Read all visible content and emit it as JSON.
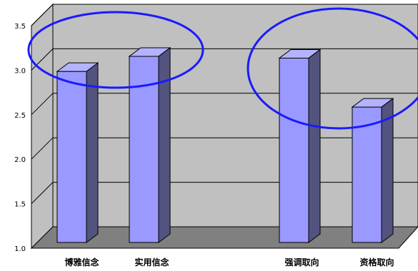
{
  "chart_data": {
    "type": "bar",
    "style": "3d-column",
    "categories": [
      "博雅信念",
      "实用信念",
      "强调取向",
      "资格取向"
    ],
    "series": [
      {
        "values": [
          3.05,
          3.22,
          3.2,
          2.65
        ]
      }
    ],
    "yticks": [
      "1.0",
      "1.5",
      "2.0",
      "2.5",
      "3.0",
      "3.5"
    ],
    "ylim": [
      1.0,
      3.5
    ],
    "grid": true,
    "legend": false,
    "annotations": [
      {
        "type": "ellipse",
        "encloses": [
          "博雅信念",
          "实用信念"
        ]
      },
      {
        "type": "ellipse",
        "encloses": [
          "强调取向",
          "资格取向"
        ]
      }
    ],
    "colors": {
      "bar_front": "#9999ff",
      "bar_side": "#53537f",
      "bar_top": "#b3b3ff",
      "back_wall": "#c0c0c0",
      "floor": "#808080",
      "grid": "#000000",
      "ellipse": "#1a1aff"
    }
  }
}
